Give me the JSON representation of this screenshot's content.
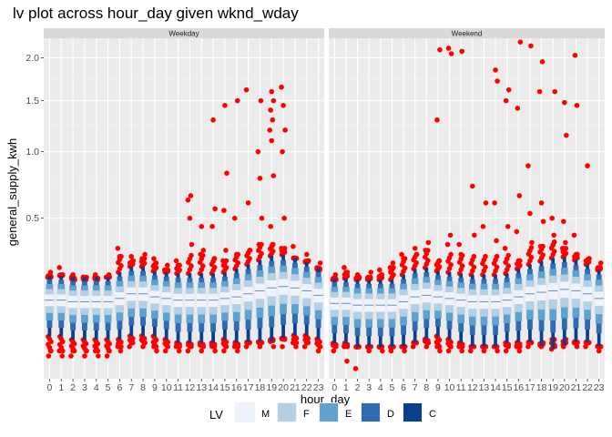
{
  "chart_data": {
    "type": "letter-value",
    "title": "lv plot across hour_day given wknd_wday",
    "xlabel": "hour_day",
    "ylabel": "general_supply_kwh",
    "y_scale": "sqrt",
    "y_ticks": [
      0.5,
      1.0,
      1.5,
      2.0
    ],
    "y_tick_labels": [
      "0.5",
      "1.0",
      "1.5",
      "2.0"
    ],
    "x_categories": [
      "0",
      "1",
      "2",
      "3",
      "4",
      "5",
      "6",
      "7",
      "8",
      "9",
      "10",
      "11",
      "12",
      "13",
      "14",
      "15",
      "16",
      "17",
      "18",
      "19",
      "20",
      "21",
      "22",
      "23"
    ],
    "grid": true,
    "legend": {
      "title": "LV",
      "position": "bottom",
      "entries": [
        {
          "label": "M",
          "color": "#EEF3FD"
        },
        {
          "label": "F",
          "color": "#B3D0E4"
        },
        {
          "label": "E",
          "color": "#5FA2CF"
        },
        {
          "label": "D",
          "color": "#2E6DB3"
        },
        {
          "label": "C",
          "color": "#0B3F8A"
        }
      ]
    },
    "outlier_color": "#FF0000",
    "panels": [
      {
        "name": "Weekday",
        "median": [
          0.12,
          0.12,
          0.115,
          0.115,
          0.115,
          0.115,
          0.125,
          0.14,
          0.14,
          0.13,
          0.125,
          0.12,
          0.12,
          0.12,
          0.12,
          0.125,
          0.13,
          0.14,
          0.15,
          0.16,
          0.165,
          0.16,
          0.15,
          0.135
        ],
        "spread": [
          0.045,
          0.045,
          0.045,
          0.045,
          0.045,
          0.045,
          0.05,
          0.055,
          0.055,
          0.05,
          0.05,
          0.05,
          0.05,
          0.05,
          0.05,
          0.05,
          0.055,
          0.06,
          0.065,
          0.07,
          0.07,
          0.065,
          0.06,
          0.055
        ],
        "upper_outliers": [
          [
            0.2,
            0.22
          ],
          [
            0.21,
            0.24
          ],
          [
            0.19,
            0.21
          ],
          [
            0.19,
            0.2
          ],
          [
            0.19,
            0.21
          ],
          [
            0.2,
            0.21
          ],
          [
            0.29,
            0.33
          ],
          [
            0.27,
            0.29
          ],
          [
            0.28,
            0.3
          ],
          [
            0.26,
            0.28
          ],
          [
            0.23,
            0.25
          ],
          [
            0.25,
            0.27
          ],
          [
            0.35,
            0.5,
            0.62,
            0.65
          ],
          [
            0.3,
            0.32,
            0.45
          ],
          [
            0.28,
            0.45,
            0.56,
            1.3
          ],
          [
            0.27,
            0.32,
            0.55,
            0.82,
            1.45
          ],
          [
            0.3,
            0.5,
            1.5
          ],
          [
            0.32,
            0.6,
            1.62
          ],
          [
            0.35,
            0.5,
            0.78,
            1.0,
            1.5
          ],
          [
            0.35,
            0.45,
            0.8,
            1.1,
            1.2,
            1.3,
            1.4,
            1.5,
            1.6
          ],
          [
            0.33,
            0.5,
            1.0,
            1.2,
            1.45,
            1.65
          ],
          [
            0.28,
            0.34
          ],
          [
            0.27,
            0.3
          ],
          [
            0.23,
            0.26
          ]
        ],
        "lower_outliers": [
          [
            0.015,
            0.01
          ],
          [
            0.015,
            0.01
          ],
          [
            0.015,
            0.01
          ],
          [
            0.015,
            0.01
          ],
          [
            0.015,
            0.01
          ],
          [
            0.015,
            0.01
          ],
          [
            0.02,
            0.015
          ],
          [
            0.025,
            0.02
          ],
          [
            0.025,
            0.02
          ],
          [
            0.02,
            0.015
          ],
          [
            0.02,
            0.015
          ],
          [
            0.02,
            0.015
          ],
          [
            0.02,
            0.015
          ],
          [
            0.02,
            0.015
          ],
          [
            0.02,
            0.015
          ],
          [
            0.02,
            0.015
          ],
          [
            0.02,
            0.015
          ],
          [
            0.025,
            0.02
          ],
          [
            0.025,
            0.02
          ],
          [
            0.03,
            0.02
          ],
          [
            0.03,
            0.02
          ],
          [
            0.025,
            0.02
          ],
          [
            0.025,
            0.02
          ],
          [
            0.02,
            0.015
          ]
        ]
      },
      {
        "name": "Weekend",
        "median": [
          0.11,
          0.11,
          0.105,
          0.105,
          0.105,
          0.105,
          0.115,
          0.13,
          0.135,
          0.13,
          0.125,
          0.12,
          0.115,
          0.115,
          0.115,
          0.12,
          0.13,
          0.14,
          0.145,
          0.15,
          0.155,
          0.15,
          0.14,
          0.125
        ],
        "spread": [
          0.045,
          0.045,
          0.045,
          0.045,
          0.045,
          0.045,
          0.05,
          0.055,
          0.055,
          0.05,
          0.05,
          0.05,
          0.05,
          0.05,
          0.05,
          0.05,
          0.055,
          0.06,
          0.065,
          0.07,
          0.07,
          0.065,
          0.06,
          0.055
        ],
        "upper_outliers": [
          [
            0.19,
            0.21
          ],
          [
            0.22,
            0.24
          ],
          [
            0.2,
            0.21
          ],
          [
            0.2,
            0.22
          ],
          [
            0.21,
            0.23
          ],
          [
            0.24,
            0.26
          ],
          [
            0.28,
            0.3
          ],
          [
            0.3,
            0.33
          ],
          [
            0.32,
            0.36
          ],
          [
            0.27,
            1.3,
            2.1
          ],
          [
            0.35,
            0.4,
            2.12,
            2.05
          ],
          [
            0.3,
            0.35,
            2.08
          ],
          [
            0.4,
            0.72
          ],
          [
            0.45,
            0.6
          ],
          [
            0.37,
            0.6,
            1.72,
            1.85
          ],
          [
            0.33,
            0.45,
            1.5,
            1.62
          ],
          [
            0.27,
            0.42,
            0.65,
            1.42,
            2.2
          ],
          [
            0.36,
            0.53,
            0.88,
            2.15
          ],
          [
            0.34,
            0.48,
            0.6,
            1.6,
            1.95
          ],
          [
            0.4,
            0.5,
            1.6
          ],
          [
            0.33,
            0.36,
            0.48,
            1.15,
            1.48
          ],
          [
            0.3,
            0.4,
            1.45,
            2.03
          ],
          [
            0.28,
            0.88
          ],
          [
            0.24,
            0.26
          ]
        ],
        "lower_outliers": [
          [
            0.02,
            0.015
          ],
          [
            0.02,
            0.006
          ],
          [
            0.02,
            0.002
          ],
          [
            0.02,
            0.015
          ],
          [
            0.02,
            0.015
          ],
          [
            0.02,
            0.015
          ],
          [
            0.02,
            0.015
          ],
          [
            0.025,
            0.02
          ],
          [
            0.025,
            0.02
          ],
          [
            0.02,
            0.015
          ],
          [
            0.02,
            0.015
          ],
          [
            0.02,
            0.015
          ],
          [
            0.02,
            0.015
          ],
          [
            0.02,
            0.015
          ],
          [
            0.02,
            0.015
          ],
          [
            0.02,
            0.015
          ],
          [
            0.02,
            0.015
          ],
          [
            0.025,
            0.02
          ],
          [
            0.025,
            0.02
          ],
          [
            0.03,
            0.02
          ],
          [
            0.03,
            0.02
          ],
          [
            0.025,
            0.02
          ],
          [
            0.025,
            0.02
          ],
          [
            0.02,
            0.015
          ]
        ]
      }
    ]
  }
}
